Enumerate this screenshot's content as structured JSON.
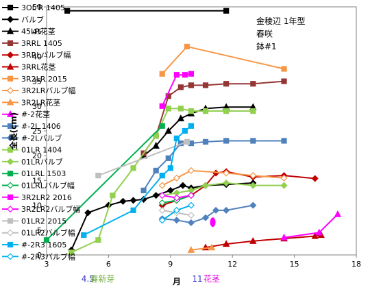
{
  "chart_data": {
    "type": "line",
    "title_lines": [
      "金稜辺 1年型",
      "春咲",
      "鉢#1"
    ],
    "xlabel": "月",
    "ylabel": "全長(cm)",
    "xlim": [
      3,
      18
    ],
    "ylim": [
      0,
      50
    ],
    "xticks": [
      3,
      6,
      9,
      12,
      15,
      18
    ],
    "yticks": [
      0,
      5,
      10,
      15,
      20,
      25,
      30,
      35,
      40,
      45,
      50
    ],
    "grid": "none",
    "legend_position": "left",
    "annotations": [
      {
        "text": "4.5",
        "x": 5.0,
        "color": "#3333cc"
      },
      {
        "text": "春新芽",
        "x": 5.7,
        "color": "#66aa33"
      },
      {
        "text": "11",
        "x": 10.3,
        "color": "#3333cc"
      },
      {
        "text": "花茎",
        "x": 11.0,
        "color": "#dd00dd"
      }
    ],
    "series": [
      {
        "name": "3OL'R 1405",
        "color": "#000000",
        "marker": "square",
        "points": [
          [
            4.0,
            49.2
          ],
          [
            11.7,
            49.2
          ]
        ]
      },
      {
        "name": "バルブ",
        "color": "#000000",
        "marker": "diamond",
        "points": [
          [
            4.2,
            1.0
          ],
          [
            5.0,
            8.5
          ],
          [
            6.0,
            10.0
          ],
          [
            6.7,
            10.8
          ],
          [
            7.2,
            11.0
          ],
          [
            7.7,
            11.2
          ],
          [
            8.3,
            12.0
          ],
          [
            9.0,
            13.0
          ],
          [
            9.6,
            14.0
          ],
          [
            10.0,
            13.5
          ],
          [
            10.7,
            14.0
          ],
          [
            11.7,
            14.2
          ],
          [
            13.0,
            14.5
          ]
        ]
      },
      {
        "name": "45LR花茎",
        "color": "#000000",
        "marker": "triangle",
        "points": [
          [
            7.7,
            20.0
          ],
          [
            8.3,
            22.0
          ],
          [
            8.9,
            25.0
          ],
          [
            9.5,
            27.5
          ],
          [
            10.0,
            28.5
          ],
          [
            10.7,
            29.5
          ],
          [
            11.7,
            29.8
          ],
          [
            13.0,
            29.8
          ]
        ]
      },
      {
        "name": "3RRL 1405",
        "color": "#943634",
        "marker": "square",
        "points": [
          [
            7.7,
            20.5
          ],
          [
            8.3,
            24.0
          ],
          [
            8.9,
            32.0
          ],
          [
            9.5,
            33.8
          ],
          [
            10.0,
            34.2
          ],
          [
            10.7,
            34.2
          ],
          [
            11.7,
            34.5
          ],
          [
            13.0,
            34.5
          ],
          [
            14.5,
            35.0
          ]
        ]
      },
      {
        "name": "3RRLバルブ幅",
        "color": "#c00000",
        "marker": "diamond",
        "points": [
          [
            8.6,
            10.0
          ],
          [
            9.3,
            11.0
          ],
          [
            10.0,
            12.0
          ],
          [
            10.7,
            14.0
          ],
          [
            11.2,
            16.5
          ],
          [
            11.7,
            16.8
          ],
          [
            13.0,
            15.7
          ],
          [
            14.5,
            16.0
          ],
          [
            16.0,
            15.4
          ]
        ]
      },
      {
        "name": "3RRL花茎",
        "color": "#c00000",
        "marker": "triangle",
        "points": [
          [
            10.7,
            1.5
          ],
          [
            11.7,
            2.2
          ],
          [
            13.0,
            2.8
          ],
          [
            14.5,
            3.3
          ],
          [
            16.0,
            3.8
          ],
          [
            16.3,
            4.0
          ]
        ]
      },
      {
        "name": "3R2LR 2015",
        "color": "#f79646",
        "marker": "square",
        "points": [
          [
            8.6,
            36.5
          ],
          [
            9.8,
            42.0
          ],
          [
            14.5,
            37.5
          ]
        ]
      },
      {
        "name": "3R2LRバルブ幅",
        "color": "#f79646",
        "marker": "diamond",
        "hollow": true,
        "points": [
          [
            8.6,
            14.0
          ],
          [
            9.3,
            15.5
          ],
          [
            10.0,
            17.0
          ],
          [
            11.7,
            16.5
          ],
          [
            13.0,
            16.0
          ],
          [
            14.5,
            15.5
          ]
        ]
      },
      {
        "name": "3R2LR花茎",
        "color": "#f79646",
        "marker": "triangle",
        "points": [
          [
            10.0,
            1.0
          ],
          [
            11.0,
            1.5
          ]
        ]
      },
      {
        "name": "#-2花茎",
        "color": "#ff00ff",
        "marker": "triangle",
        "points": [
          [
            14.5,
            3.5
          ],
          [
            16.2,
            4.5
          ],
          [
            17.1,
            8.2
          ]
        ]
      },
      {
        "name": "#-2L 1406",
        "color": "#4f81bd",
        "marker": "square",
        "points": [
          [
            7.7,
            13.0
          ],
          [
            8.3,
            17.0
          ],
          [
            8.9,
            19.5
          ],
          [
            9.5,
            22.5
          ],
          [
            10.0,
            22.5
          ],
          [
            10.7,
            22.8
          ],
          [
            11.7,
            23.0
          ],
          [
            13.0,
            23.0
          ],
          [
            14.5,
            23.0
          ]
        ]
      },
      {
        "name": "#-2Lバルブ",
        "color": "#4f81bd",
        "marker": "diamond",
        "points": [
          [
            8.6,
            7.3
          ],
          [
            9.3,
            7.0
          ],
          [
            10.0,
            6.5
          ],
          [
            10.7,
            7.5
          ],
          [
            11.2,
            9.0
          ],
          [
            11.7,
            9.0
          ],
          [
            13.0,
            10.0
          ]
        ]
      },
      {
        "name": "01LR 1404",
        "color": "#92d050",
        "marker": "square",
        "points": [
          [
            4.2,
            0.5
          ],
          [
            5.5,
            3.0
          ],
          [
            6.2,
            12.0
          ],
          [
            7.2,
            17.5
          ],
          [
            8.3,
            24.0
          ],
          [
            8.9,
            29.5
          ],
          [
            9.5,
            29.5
          ],
          [
            10.0,
            29.0
          ],
          [
            10.7,
            29.0
          ],
          [
            11.7,
            29.0
          ],
          [
            13.0,
            29.0
          ]
        ]
      },
      {
        "name": "01LRバルブ",
        "color": "#92d050",
        "marker": "diamond",
        "points": [
          [
            8.6,
            12.0
          ],
          [
            9.3,
            12.5
          ],
          [
            10.0,
            13.0
          ],
          [
            10.7,
            14.0
          ],
          [
            11.7,
            14.5
          ],
          [
            13.0,
            14.0
          ],
          [
            14.5,
            14.0
          ]
        ]
      },
      {
        "name": "01LRL 1503",
        "color": "#00b050",
        "marker": "square",
        "points": [
          [
            3.0,
            3.0
          ],
          [
            8.6,
            26.0
          ]
        ]
      },
      {
        "name": "01LRLバルブ幅",
        "color": "#00b050",
        "marker": "diamond",
        "hollow": true,
        "points": [
          [
            8.6,
            10.5
          ],
          [
            9.3,
            11.0
          ],
          [
            10.0,
            12.0
          ]
        ]
      },
      {
        "name": "3R2LR2 2016",
        "color": "#ff00ff",
        "marker": "square",
        "points": [
          [
            8.6,
            30.0
          ],
          [
            9.3,
            36.3
          ],
          [
            9.7,
            36.3
          ],
          [
            10.0,
            36.5
          ]
        ]
      },
      {
        "name": "3R2LR2バルブ幅",
        "color": "#ff00ff",
        "marker": "diamond",
        "hollow": true,
        "points": [
          [
            8.6,
            12.0
          ],
          [
            9.3,
            11.5
          ],
          [
            10.0,
            12.0
          ]
        ]
      },
      {
        "name": "01LR2 2015",
        "color": "#bfbfbf",
        "marker": "square",
        "points": [
          [
            5.5,
            16.0
          ],
          [
            9.8,
            22.8
          ]
        ]
      },
      {
        "name": "01LR2バルブ幅",
        "color": "#bfbfbf",
        "marker": "diamond",
        "hollow": true,
        "points": [
          [
            8.6,
            9.0
          ],
          [
            9.3,
            8.5
          ],
          [
            10.0,
            8.0
          ]
        ]
      },
      {
        "name": "#-2R3 1605",
        "color": "#00b0f0",
        "marker": "square",
        "points": [
          [
            4.8,
            4.0
          ],
          [
            7.2,
            9.0
          ],
          [
            8.6,
            16.0
          ],
          [
            9.0,
            17.5
          ],
          [
            9.3,
            23.5
          ],
          [
            9.7,
            25.0
          ],
          [
            10.0,
            26.0
          ]
        ]
      },
      {
        "name": "#-2R3バルブ幅",
        "color": "#00b0f0",
        "marker": "diamond",
        "hollow": true,
        "points": [
          [
            8.6,
            7.0
          ],
          [
            9.3,
            9.0
          ],
          [
            10.0,
            10.0
          ]
        ]
      }
    ]
  }
}
